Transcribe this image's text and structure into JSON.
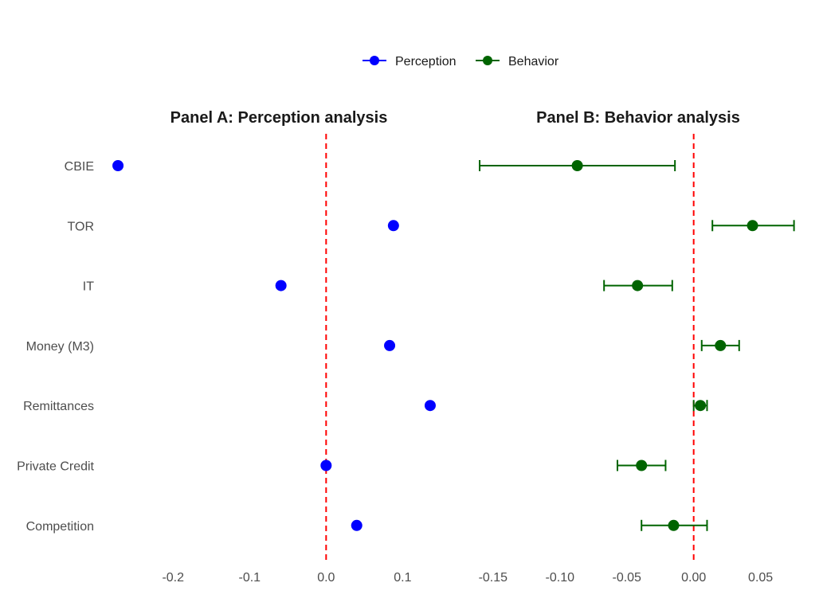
{
  "legend": {
    "items": [
      {
        "label": "Perception",
        "color": "#0000ff"
      },
      {
        "label": "Behavior",
        "color": "#006400"
      }
    ]
  },
  "chart_data": [
    {
      "type": "scatter",
      "title": "Panel A: Perception analysis",
      "series_name": "Perception",
      "color": "#0000ff",
      "categories": [
        "CBIE",
        "TOR",
        "IT",
        "Money (M3)",
        "Remittances",
        "Private Credit",
        "Competition"
      ],
      "values": [
        -0.272,
        0.088,
        -0.059,
        0.083,
        0.136,
        0.0,
        0.04
      ],
      "ci_low": [
        -0.275,
        0.085,
        -0.062,
        0.08,
        0.133,
        -0.003,
        0.037
      ],
      "ci_high": [
        -0.269,
        0.091,
        -0.056,
        0.086,
        0.139,
        0.003,
        0.043
      ],
      "xlim": [
        -0.27,
        0.16
      ],
      "x_ticks": [
        -0.2,
        -0.1,
        0.0,
        0.1
      ],
      "x_tick_labels": [
        "-0.2",
        "-0.1",
        "0.0",
        "0.1"
      ],
      "reference_line": 0.0
    },
    {
      "type": "scatter",
      "title": "Panel B: Behavior analysis",
      "series_name": "Behavior",
      "color": "#006400",
      "categories": [
        "CBIE",
        "TOR",
        "IT",
        "Money (M3)",
        "Remittances",
        "Private Credit",
        "Competition"
      ],
      "values": [
        -0.087,
        0.044,
        -0.042,
        0.02,
        0.005,
        -0.039,
        -0.015
      ],
      "ci_low": [
        -0.16,
        0.014,
        -0.067,
        0.006,
        0.0,
        -0.057,
        -0.039
      ],
      "ci_high": [
        -0.014,
        0.075,
        -0.016,
        0.034,
        0.01,
        -0.021,
        0.01
      ],
      "xlim": [
        -0.163,
        0.08
      ],
      "x_ticks": [
        -0.15,
        -0.1,
        -0.05,
        0.0,
        0.05
      ],
      "x_tick_labels": [
        "-0.15",
        "-0.10",
        "-0.05",
        "0.00",
        "0.05"
      ],
      "reference_line": 0.0
    }
  ]
}
